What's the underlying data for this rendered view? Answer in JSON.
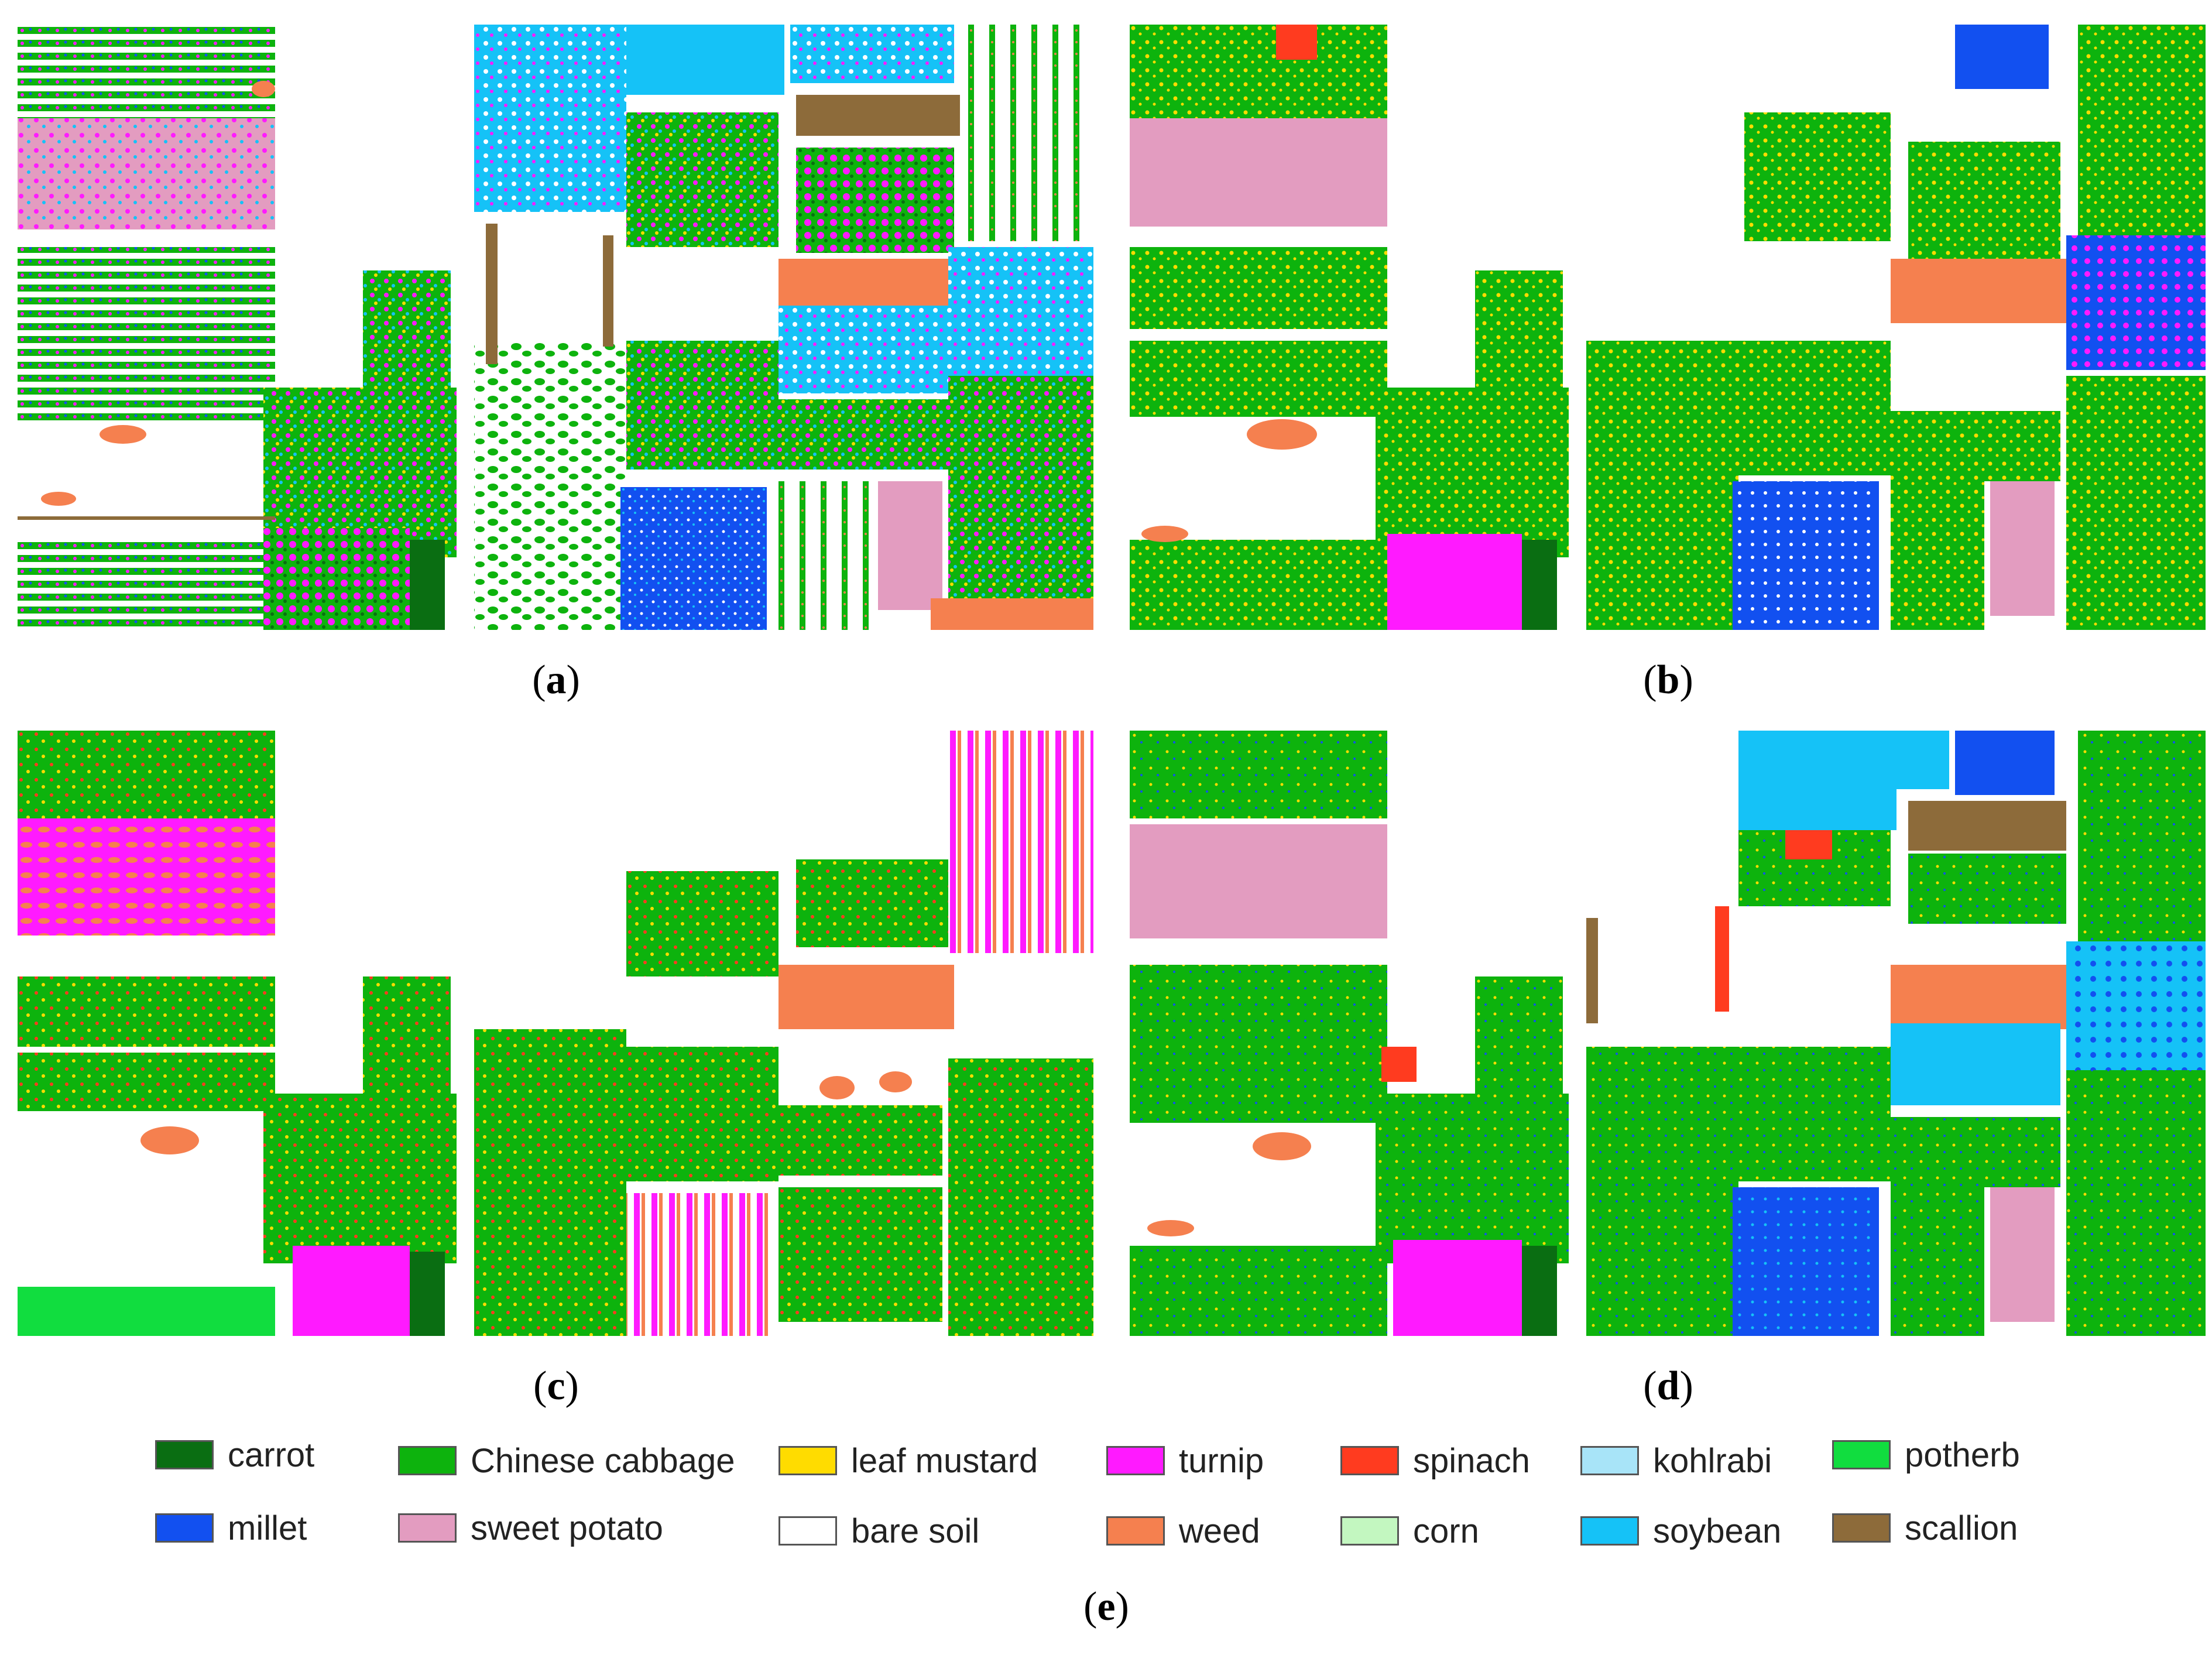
{
  "panels": [
    {
      "id": "a",
      "caption_letter": "a"
    },
    {
      "id": "b",
      "caption_letter": "b"
    },
    {
      "id": "c",
      "caption_letter": "c"
    },
    {
      "id": "d",
      "caption_letter": "d"
    }
  ],
  "legend_caption_letter": "e",
  "colors": {
    "carrot": "#0a6e12",
    "chinese_cabbage": "#0db30d",
    "leaf_mustard": "#ffdc00",
    "turnip": "#ff1aff",
    "spinach": "#ff3b1f",
    "kohlrabi": "#a8e4f8",
    "potherb": "#11dd3f",
    "millet": "#1250f0",
    "sweet_potato": "#e39cc0",
    "bare_soil": "#ffffff",
    "weed": "#f5804f",
    "corn": "#c3f7c0",
    "soybean": "#15c2f7",
    "scallion": "#8d6b3a"
  },
  "legend": [
    {
      "label": "carrot",
      "color": "#0a6e12"
    },
    {
      "label": "Chinese cabbage",
      "color": "#0db30d"
    },
    {
      "label": "leaf mustard",
      "color": "#ffdc00"
    },
    {
      "label": "turnip",
      "color": "#ff1aff"
    },
    {
      "label": "spinach",
      "color": "#ff3b1f"
    },
    {
      "label": "kohlrabi",
      "color": "#a8e4f8"
    },
    {
      "label": "potherb",
      "color": "#11dd3f"
    },
    {
      "label": "millet",
      "color": "#1250f0"
    },
    {
      "label": "sweet potato",
      "color": "#e39cc0"
    },
    {
      "label": "bare soil",
      "color": "#ffffff"
    },
    {
      "label": "weed",
      "color": "#f5804f"
    },
    {
      "label": "corn",
      "color": "#c3f7c0"
    },
    {
      "label": "soybean",
      "color": "#15c2f7"
    },
    {
      "label": "scallion",
      "color": "#8d6b3a"
    }
  ]
}
